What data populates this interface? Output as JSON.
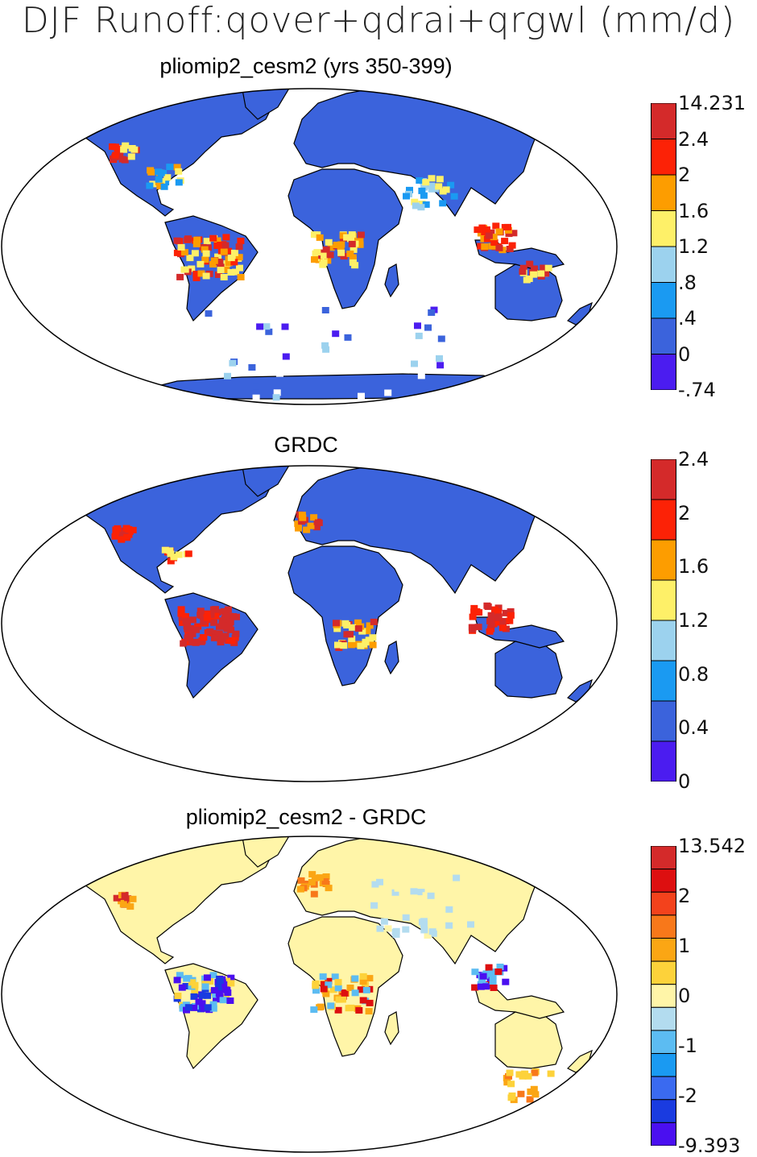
{
  "figure": {
    "title": "DJF Runoff:qover+qdrai+qrgwl (mm/d)"
  },
  "panels": [
    {
      "title": "pliomip2_cesm2 (yrs 350-399)",
      "colorbar": {
        "colors": [
          "#4b1cf0",
          "#3b63dc",
          "#1a9af2",
          "#9cd2ee",
          "#fef068",
          "#fd9d00",
          "#fc2206",
          "#d42a2a"
        ],
        "labels": [
          "14.231",
          "2.4",
          "2",
          "1.6",
          "1.2",
          ".8",
          ".4",
          "0",
          "-.74"
        ]
      },
      "dominant_fill": "#3b63dc"
    },
    {
      "title": "GRDC",
      "colorbar": {
        "colors": [
          "#4b1cf0",
          "#3b63dc",
          "#1a9af2",
          "#9cd2ee",
          "#fef068",
          "#fd9d00",
          "#fc2206",
          "#d42a2a"
        ],
        "labels": [
          "2.4",
          "2",
          "1.6",
          "1.2",
          "0.8",
          "0.4",
          "0"
        ]
      },
      "dominant_fill": "#3b63dc"
    },
    {
      "title": "pliomip2_cesm2 - GRDC",
      "colorbar": {
        "colors": [
          "#4a0ff0",
          "#1a3be0",
          "#3a6af0",
          "#1a9af2",
          "#5cbcf2",
          "#b3dcef",
          "#fff5a8",
          "#fdd23a",
          "#fba614",
          "#f8781a",
          "#f3421c",
          "#dd0f10",
          "#d42a2a"
        ],
        "labels": [
          "13.542",
          "2",
          "1",
          "0",
          "-1",
          "-2",
          "-9.393"
        ]
      },
      "dominant_fill": "#fff5a8"
    }
  ]
}
